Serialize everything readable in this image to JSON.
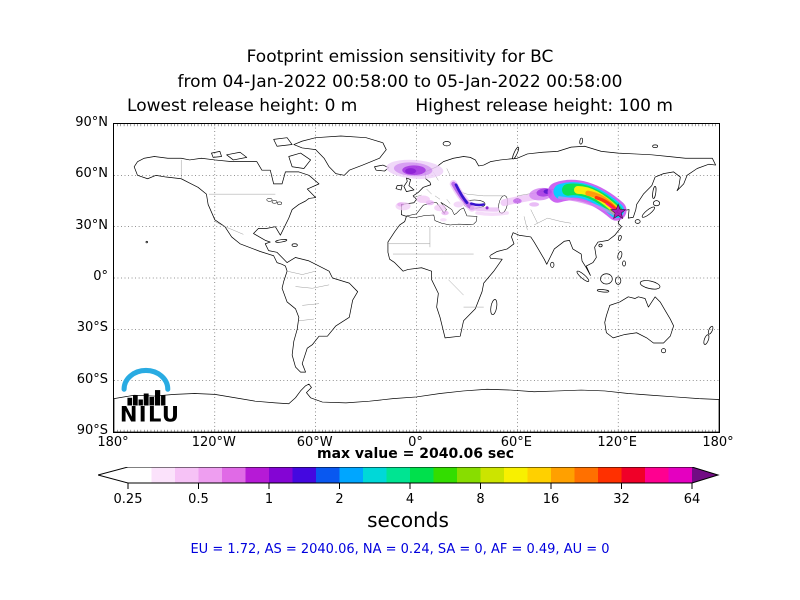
{
  "figure": {
    "title_line1": "Footprint emission sensitivity for BC",
    "title_line2": "from 04-Jan-2022 00:58:00 to 05-Jan-2022 00:58:00",
    "release_lowest": "Lowest release height: 0 m",
    "release_highest": "Highest release height: 100 m"
  },
  "map": {
    "lat_tick_labels": [
      "90°N",
      "60°N",
      "30°N",
      "0°",
      "30°S",
      "60°S",
      "90°S"
    ],
    "lon_tick_labels": [
      "180°",
      "120°W",
      "60°W",
      "0°",
      "60°E",
      "120°E",
      "180°"
    ]
  },
  "logo": {
    "text": "NILU",
    "arc_color": "#29abe2"
  },
  "max_value_label": "max value = 2040.06 sec",
  "colorbar": {
    "tick_labels": [
      "0.25",
      "0.5",
      "1",
      "2",
      "4",
      "8",
      "16",
      "32",
      "64"
    ],
    "unit_label": "seconds",
    "under_range_color": "#ffffff",
    "over_range_color": "#720c84",
    "segment_colors": [
      "#ffffff",
      "#fbe2fb",
      "#f6c2f6",
      "#ee9ef0",
      "#e06ae6",
      "#b61ad6",
      "#8405d4",
      "#4408e0",
      "#0958f0",
      "#00a6ff",
      "#00d8d8",
      "#00e492",
      "#00e04c",
      "#33dd00",
      "#88dd00",
      "#cce400",
      "#f8f000",
      "#ffd000",
      "#ffa000",
      "#ff7000",
      "#ff3000",
      "#f00028",
      "#ff0090",
      "#e400c0"
    ]
  },
  "footer": {
    "region_totals_label": "EU = 1.72,  AS = 2040.06,  NA = 0.24,  SA = 0,  AF = 0.49,  AU = 0",
    "color": "#0000dd"
  },
  "chart_data": {
    "type": "heatmap",
    "title": "Footprint emission sensitivity for BC",
    "species": "BC",
    "period_from": "04-Jan-2022 00:58:00",
    "period_to": "05-Jan-2022 00:58:00",
    "lowest_release_height_m": 0,
    "highest_release_height_m": 100,
    "units": "seconds",
    "max_value_sec": 2040.06,
    "scale": "logarithmic, factor-2 levels with 3 sub-steps per octave",
    "colorbar_levels_sec": [
      0.25,
      0.5,
      1,
      2,
      4,
      8,
      16,
      32,
      64
    ],
    "map_extent": {
      "lon_min": -180,
      "lon_max": 180,
      "lat_min": -90,
      "lat_max": 90
    },
    "grid": {
      "lon_step_deg": 60,
      "lat_step_deg": 30,
      "style": "dotted"
    },
    "release_location": {
      "lon_deg": 120,
      "lat_deg": 39,
      "marker": "star",
      "marker_color": "#a715b8"
    },
    "region_totals": {
      "EU": 1.72,
      "AS": 2040.06,
      "NA": 0.24,
      "SA": 0,
      "AF": 0.49,
      "AU": 0
    },
    "plume_features": [
      {
        "region": "Northeast China near release point",
        "lon_range": [
          83,
          121
        ],
        "lat_range": [
          38,
          55
        ],
        "intensity": "high (8-64 sec) rainbow core, red/orange at source grading to yellow, green, cyan downwind"
      },
      {
        "region": "Central Asia / Kazakhstan",
        "lon_range": [
          45,
          85
        ],
        "lat_range": [
          38,
          55
        ],
        "intensity": "moderate (0.5-2 sec) violet mass with dark blue-violet core near 75E 50N"
      },
      {
        "region": "Eastern Europe, Baltic and Black Sea",
        "lon_range": [
          18,
          42
        ],
        "lat_range": [
          38,
          60
        ],
        "intensity": "moderate (1-2 sec) blue streaks over violet"
      },
      {
        "region": "North Atlantic / Scandinavia",
        "lon_range": [
          -27,
          20
        ],
        "lat_range": [
          57,
          71
        ],
        "intensity": "moderate (0.5-1 sec) violet cloud"
      },
      {
        "region": "Western Europe and Mediterranean",
        "lon_range": [
          -16,
          36
        ],
        "lat_range": [
          31,
          50
        ],
        "intensity": "low (0.25-0.5 sec) pale magenta patches"
      }
    ]
  }
}
